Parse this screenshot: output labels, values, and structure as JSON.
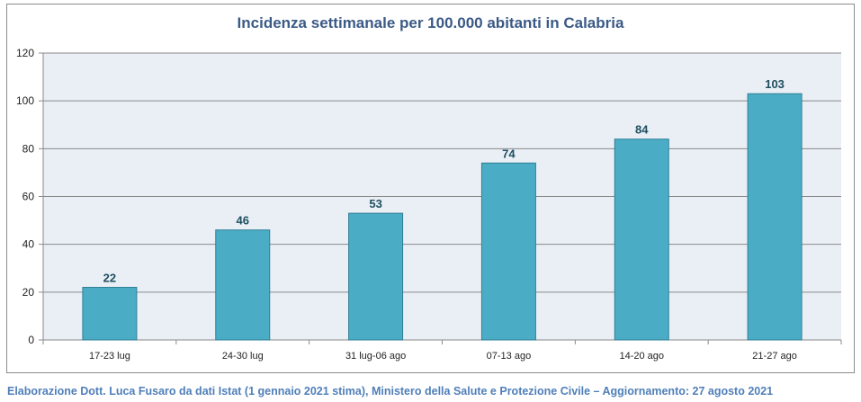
{
  "chart_data": {
    "type": "bar",
    "title": "Incidenza settimanale per 100.000 abitanti in Calabria",
    "categories": [
      "17-23 lug",
      "24-30 lug",
      "31 lug-06 ago",
      "07-13 ago",
      "14-20 ago",
      "21-27 ago"
    ],
    "values": [
      22,
      46,
      53,
      74,
      84,
      103
    ],
    "data_labels": [
      "22",
      "46",
      "53",
      "74",
      "84",
      "103"
    ],
    "xlabel": "",
    "ylabel": "",
    "ylim": [
      0,
      120
    ],
    "yticks": [
      0,
      20,
      40,
      60,
      80,
      100,
      120
    ],
    "grid": true,
    "legend": "none",
    "colors": {
      "bar": "#4bacc6",
      "bar_border": "#2f7f96",
      "plot_bg": "#e9eff5",
      "grid": "#8a8a8a",
      "title": "#3b5a86",
      "data_label": "#1f4e5f"
    }
  },
  "footer": "Elaborazione Dott. Luca Fusaro da dati Istat (1 gennaio 2021 stima), Ministero della Salute e Protezione Civile – Aggiornamento: 27 agosto 2021"
}
